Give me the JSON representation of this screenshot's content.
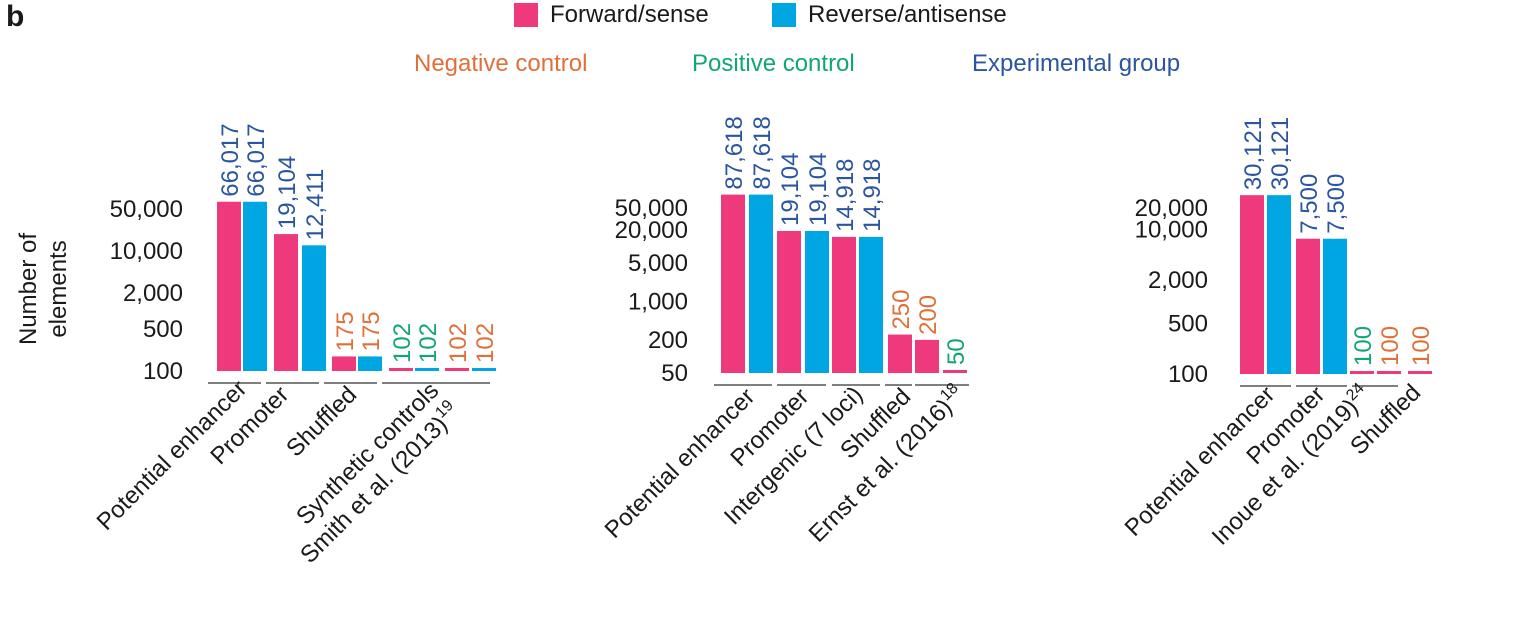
{
  "panel_label": "b",
  "legend": [
    {
      "label": "Forward/sense",
      "color": "#ee3a7d"
    },
    {
      "label": "Reverse/antisense",
      "color": "#00a6e2"
    }
  ],
  "group_labels": [
    {
      "label": "Negative control",
      "color": "#e0703a"
    },
    {
      "label": "Positive control",
      "color": "#12a672"
    },
    {
      "label": "Experimental group",
      "color": "#2b55a0"
    }
  ],
  "ylabel": [
    "Number of",
    "elements"
  ],
  "chart_data": [
    {
      "type": "bar",
      "scale": "log",
      "yticks": [
        100,
        500,
        2000,
        10000,
        50000
      ],
      "ytick_labels": [
        "100",
        "500",
        "2,000",
        "10,000",
        "50,000"
      ],
      "categories": [
        {
          "label": [
            "Potential enhancer"
          ],
          "bars": [
            {
              "series": "Forward/sense",
              "value": 66017,
              "label": "66,017",
              "group": "Experimental group"
            },
            {
              "series": "Reverse/antisense",
              "value": 66017,
              "label": "66,017",
              "group": "Experimental group"
            }
          ]
        },
        {
          "label": [
            "Promoter"
          ],
          "bars": [
            {
              "series": "Forward/sense",
              "value": 19104,
              "label": "19,104",
              "group": "Experimental group"
            },
            {
              "series": "Reverse/antisense",
              "value": 12411,
              "label": "12,411",
              "group": "Experimental group"
            }
          ]
        },
        {
          "label": [
            "Shuffled"
          ],
          "bars": [
            {
              "series": "Forward/sense",
              "value": 175,
              "label": "175",
              "group": "Negative control"
            },
            {
              "series": "Reverse/antisense",
              "value": 175,
              "label": "175",
              "group": "Negative control"
            }
          ]
        },
        {
          "label": [
            "Synthetic controls",
            "Smith et al. (2013)",
            "19"
          ],
          "bars": [
            {
              "series": "Forward/sense",
              "value": 102,
              "label": "102",
              "group": "Positive control"
            },
            {
              "series": "Reverse/antisense",
              "value": 102,
              "label": "102",
              "group": "Positive control"
            },
            {
              "series": "Forward/sense",
              "value": 102,
              "label": "102",
              "group": "Negative control"
            },
            {
              "series": "Reverse/antisense",
              "value": 102,
              "label": "102",
              "group": "Negative control"
            }
          ]
        }
      ]
    },
    {
      "type": "bar",
      "scale": "log",
      "yticks": [
        50,
        200,
        1000,
        5000,
        20000,
        50000
      ],
      "ytick_labels": [
        "50",
        "200",
        "1,000",
        "5,000",
        "20,000",
        "50,000"
      ],
      "categories": [
        {
          "label": [
            "Potential enhancer"
          ],
          "bars": [
            {
              "series": "Forward/sense",
              "value": 87618,
              "label": "87,618",
              "group": "Experimental group"
            },
            {
              "series": "Reverse/antisense",
              "value": 87618,
              "label": "87,618",
              "group": "Experimental group"
            }
          ]
        },
        {
          "label": [
            "Promoter"
          ],
          "bars": [
            {
              "series": "Forward/sense",
              "value": 19104,
              "label": "19,104",
              "group": "Experimental group"
            },
            {
              "series": "Reverse/antisense",
              "value": 19104,
              "label": "19,104",
              "group": "Experimental group"
            }
          ]
        },
        {
          "label": [
            "Intergenic (7 loci)"
          ],
          "bars": [
            {
              "series": "Forward/sense",
              "value": 14918,
              "label": "14,918",
              "group": "Experimental group"
            },
            {
              "series": "Reverse/antisense",
              "value": 14918,
              "label": "14,918",
              "group": "Experimental group"
            }
          ]
        },
        {
          "label": [
            "Shuffled"
          ],
          "bars": [
            {
              "series": "Forward/sense",
              "value": 250,
              "label": "250",
              "group": "Negative control"
            },
            {
              "series": "Forward/sense",
              "value": 200,
              "label": "200",
              "group": "Negative control"
            }
          ]
        },
        {
          "label": [
            "Ernst et al. (2016)",
            "18"
          ],
          "bars": [
            {
              "series": "Forward/sense",
              "value": 50,
              "label": "50",
              "group": "Positive control"
            }
          ]
        }
      ]
    },
    {
      "type": "bar",
      "scale": "log",
      "yticks": [
        100,
        500,
        2000,
        10000,
        20000
      ],
      "ytick_labels": [
        "100",
        "500",
        "2,000",
        "10,000",
        "20,000"
      ],
      "categories": [
        {
          "label": [
            "Potential enhancer"
          ],
          "bars": [
            {
              "series": "Forward/sense",
              "value": 30121,
              "label": "30,121",
              "group": "Experimental group"
            },
            {
              "series": "Reverse/antisense",
              "value": 30121,
              "label": "30,121",
              "group": "Experimental group"
            }
          ]
        },
        {
          "label": [
            "Promoter"
          ],
          "bars": [
            {
              "series": "Forward/sense",
              "value": 7500,
              "label": "7,500",
              "group": "Experimental group"
            },
            {
              "series": "Reverse/antisense",
              "value": 7500,
              "label": "7,500",
              "group": "Experimental group"
            }
          ]
        },
        {
          "label": [
            "Inoue et al. (2019)",
            "24"
          ],
          "bars": [
            {
              "series": "Forward/sense",
              "value": 100,
              "label": "100",
              "group": "Positive control"
            },
            {
              "series": "Forward/sense",
              "value": 100,
              "label": "100",
              "group": "Negative control"
            }
          ]
        },
        {
          "label": [
            "Shuffled"
          ],
          "bars": [
            {
              "series": "Forward/sense",
              "value": 100,
              "label": "100",
              "group": "Negative control"
            }
          ]
        }
      ]
    }
  ]
}
